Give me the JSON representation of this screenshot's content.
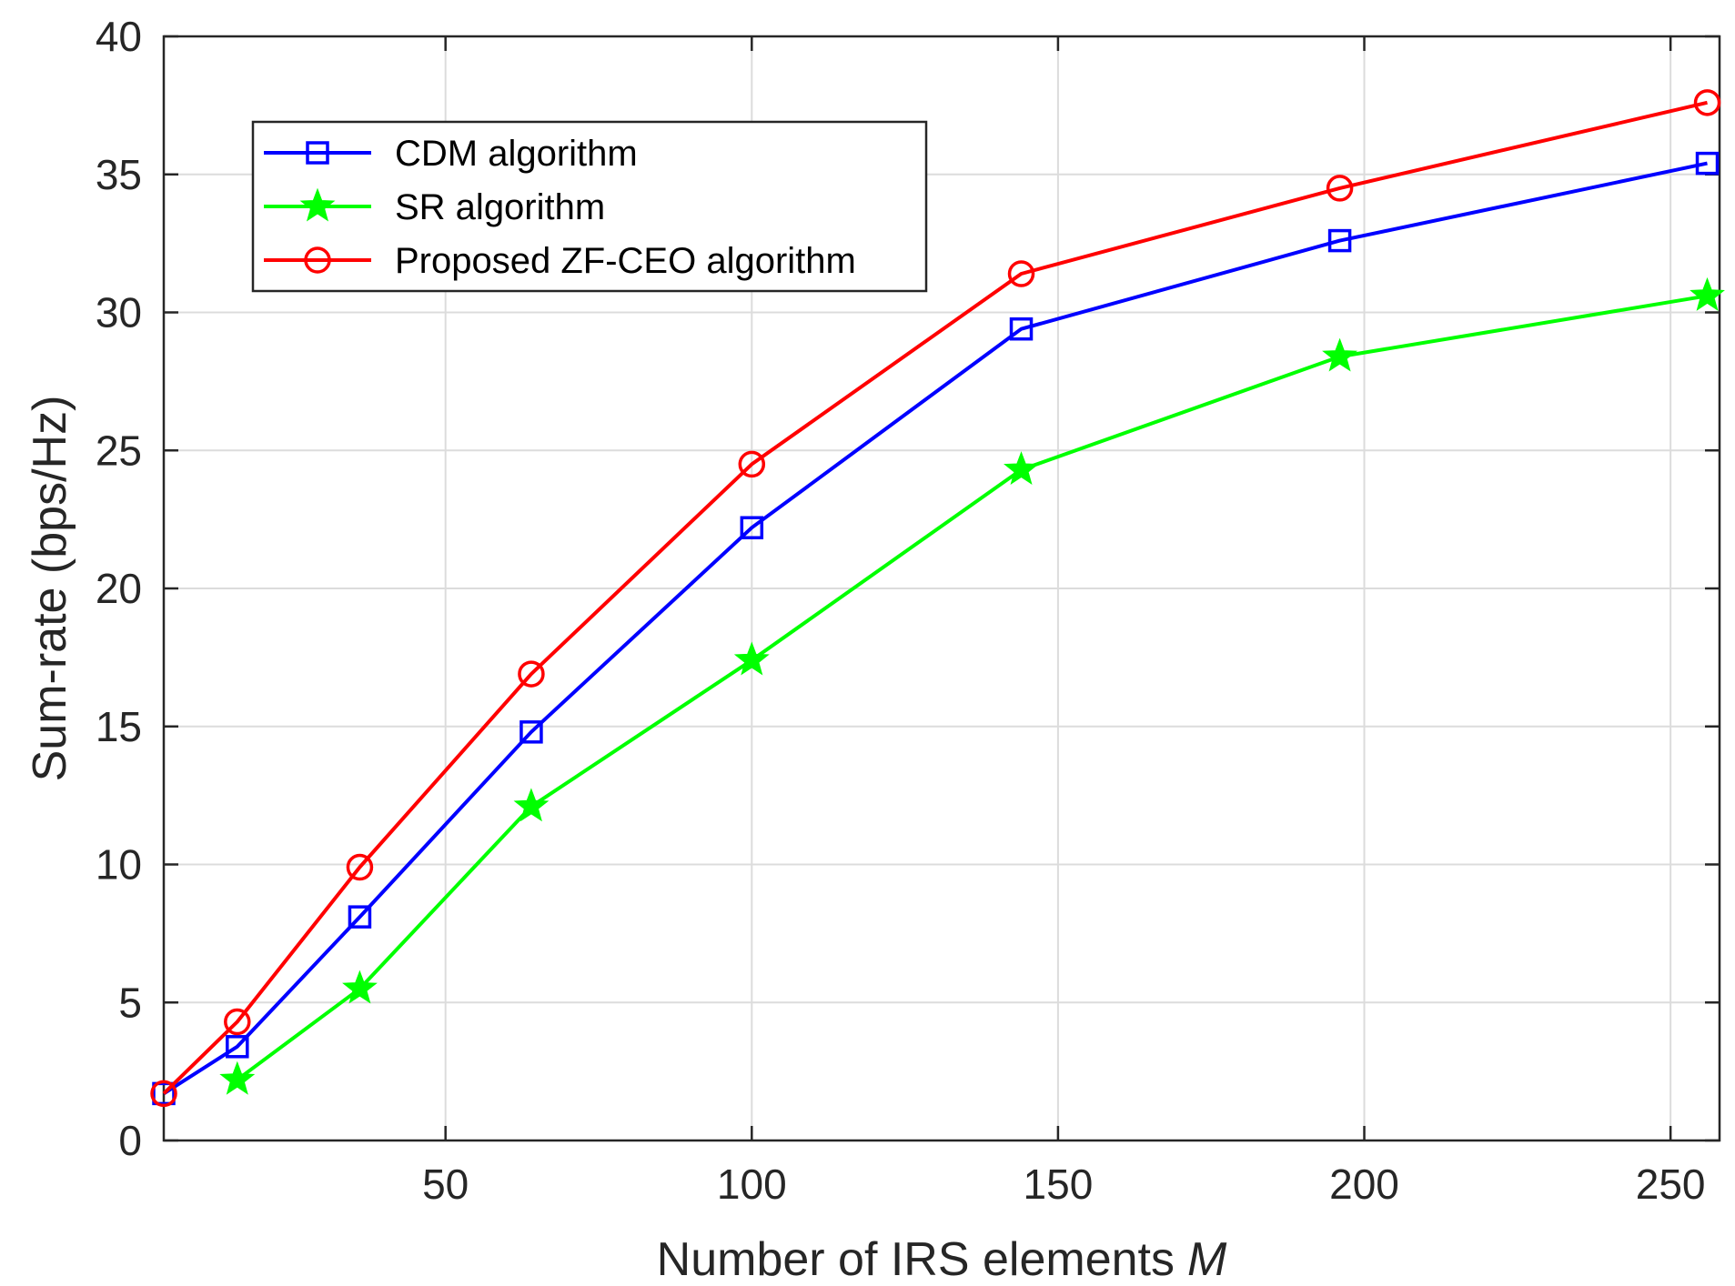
{
  "chart_data": {
    "type": "line",
    "title": "",
    "xlabel": "Number of IRS elements",
    "xlabel_var": "M",
    "ylabel": "Sum-rate (bps/Hz)",
    "xlim": [
      4,
      258
    ],
    "ylim": [
      0,
      40
    ],
    "x": [
      4,
      16,
      36,
      64,
      100,
      144,
      196,
      256
    ],
    "xticks": [
      50,
      100,
      150,
      200,
      250
    ],
    "yticks": [
      0,
      5,
      10,
      15,
      20,
      25,
      30,
      35,
      40
    ],
    "grid": true,
    "legend_position": "top-left",
    "series": [
      {
        "name": "CDM algorithm",
        "color": "#0000ff",
        "marker": "square",
        "x": [
          4,
          16,
          36,
          64,
          100,
          144,
          196,
          256
        ],
        "values": [
          1.7,
          3.4,
          8.1,
          14.8,
          22.2,
          29.4,
          32.6,
          35.4
        ]
      },
      {
        "name": "SR algorithm",
        "color": "#00ff00",
        "marker": "star",
        "x": [
          16,
          36,
          64,
          100,
          144,
          196,
          256
        ],
        "values": [
          2.2,
          5.5,
          12.1,
          17.4,
          24.3,
          28.4,
          30.6
        ]
      },
      {
        "name": "Proposed ZF-CEO algorithm",
        "color": "#ff0000",
        "marker": "circle",
        "x": [
          4,
          16,
          36,
          64,
          100,
          144,
          196,
          256
        ],
        "values": [
          1.7,
          4.3,
          9.9,
          16.9,
          24.5,
          31.4,
          34.5,
          37.6
        ]
      }
    ]
  }
}
